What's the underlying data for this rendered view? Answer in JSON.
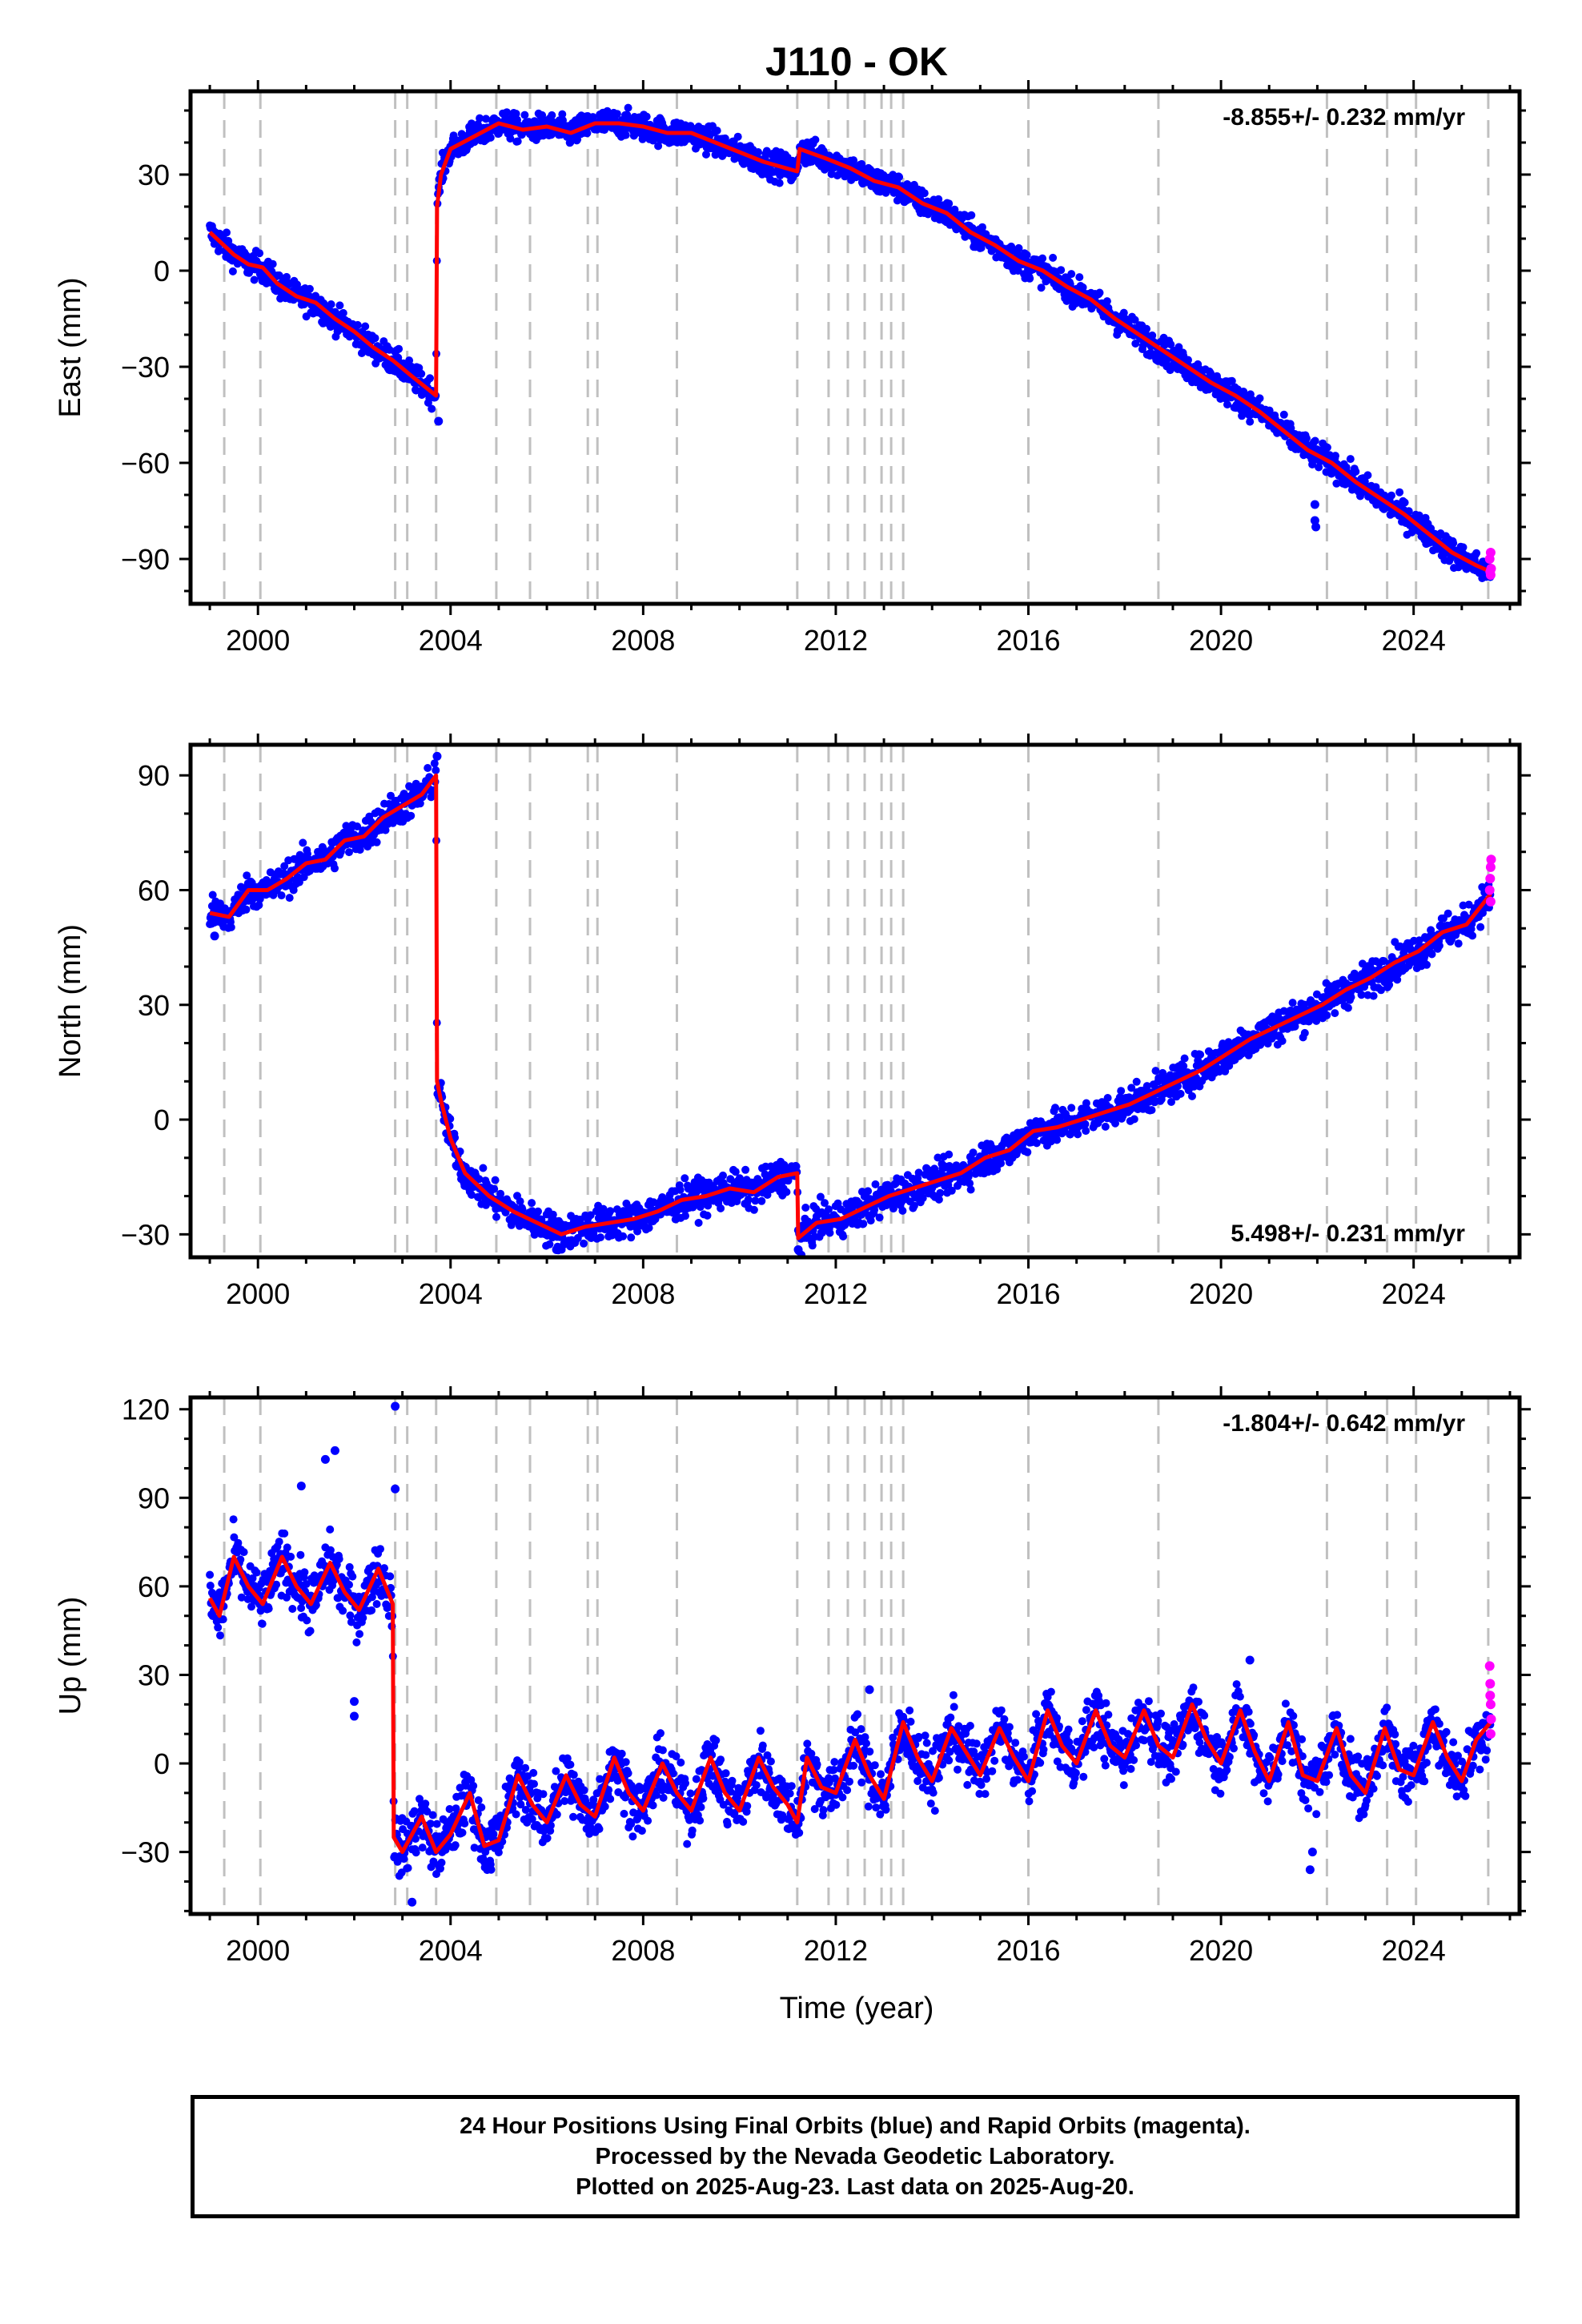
{
  "title": "J110 - OK",
  "xlabel": "Time (year)",
  "footer": {
    "line1": "24 Hour Positions Using Final Orbits (blue) and Rapid Orbits (magenta).",
    "line2": "Processed by the Nevada Geodetic Laboratory.",
    "line3": "Plotted on 2025-Aug-23. Last data on 2025-Aug-20."
  },
  "colors": {
    "final": "#0000ff",
    "rapid": "#ff00ff",
    "model": "#ff0000",
    "steps": "#c0c0c0"
  },
  "chart_data": [
    {
      "type": "scatter",
      "ylabel": "East (mm)",
      "rate_text": "-8.855+/- 0.232 mm/yr",
      "rate_position": "top-right",
      "xlim": [
        1998.6,
        2026.2
      ],
      "ylim": [
        -104,
        56
      ],
      "xticks": [
        2000,
        2004,
        2008,
        2012,
        2016,
        2020,
        2024
      ],
      "xtick_labels": [
        "2000",
        "2004",
        "2008",
        "2012",
        "2016",
        "2020",
        "2024"
      ],
      "yticks": [
        30,
        0,
        -30,
        -60,
        -90
      ],
      "ytick_labels": [
        "30",
        "0",
        "−30",
        "−60",
        "−90"
      ],
      "step_lines": [
        1999.3,
        2000.05,
        2002.85,
        2003.1,
        2003.7,
        2004.95,
        2005.65,
        2006.85,
        2007.05,
        2008.7,
        2011.2,
        2011.85,
        2012.25,
        2012.6,
        2012.95,
        2013.15,
        2013.4,
        2016.0,
        2018.7,
        2022.2,
        2023.45,
        2024.05,
        2025.55
      ],
      "model": [
        [
          1999.0,
          12
        ],
        [
          1999.5,
          5
        ],
        [
          1999.8,
          2
        ],
        [
          2000.1,
          1
        ],
        [
          2000.4,
          -4
        ],
        [
          2000.8,
          -8
        ],
        [
          2001.2,
          -10
        ],
        [
          2001.6,
          -15
        ],
        [
          2002.0,
          -19
        ],
        [
          2002.4,
          -24
        ],
        [
          2002.8,
          -28
        ],
        [
          2003.2,
          -33
        ],
        [
          2003.7,
          -39
        ],
        [
          2003.72,
          20
        ],
        [
          2003.8,
          30
        ],
        [
          2004.0,
          38
        ],
        [
          2004.5,
          42
        ],
        [
          2005.0,
          46
        ],
        [
          2005.5,
          44
        ],
        [
          2006.0,
          45
        ],
        [
          2006.5,
          43
        ],
        [
          2007.0,
          46
        ],
        [
          2007.5,
          46
        ],
        [
          2008.0,
          45
        ],
        [
          2008.5,
          43
        ],
        [
          2009.0,
          43
        ],
        [
          2009.5,
          40
        ],
        [
          2010.0,
          37
        ],
        [
          2010.5,
          34
        ],
        [
          2011.2,
          31
        ],
        [
          2011.25,
          38
        ],
        [
          2011.8,
          35
        ],
        [
          2012.3,
          32
        ],
        [
          2012.8,
          28
        ],
        [
          2013.3,
          26
        ],
        [
          2013.8,
          21
        ],
        [
          2014.3,
          18
        ],
        [
          2014.8,
          12
        ],
        [
          2015.3,
          8
        ],
        [
          2015.8,
          3
        ],
        [
          2016.3,
          0
        ],
        [
          2016.8,
          -5
        ],
        [
          2017.3,
          -9
        ],
        [
          2017.8,
          -15
        ],
        [
          2018.3,
          -20
        ],
        [
          2018.8,
          -25
        ],
        [
          2019.3,
          -30
        ],
        [
          2019.8,
          -35
        ],
        [
          2020.3,
          -39
        ],
        [
          2020.8,
          -44
        ],
        [
          2021.3,
          -50
        ],
        [
          2021.8,
          -56
        ],
        [
          2022.3,
          -60
        ],
        [
          2022.8,
          -66
        ],
        [
          2023.3,
          -71
        ],
        [
          2023.8,
          -76
        ],
        [
          2024.3,
          -82
        ],
        [
          2024.8,
          -88
        ],
        [
          2025.3,
          -92
        ],
        [
          2025.6,
          -94
        ]
      ],
      "scatter_spread": 3.0,
      "outliers": [
        [
          2003.75,
          -47
        ],
        [
          2021.95,
          -78
        ],
        [
          2021.95,
          -73
        ],
        [
          2021.97,
          -80
        ]
      ],
      "rapid": [
        [
          2025.58,
          -90
        ],
        [
          2025.59,
          -94
        ],
        [
          2025.6,
          -88
        ],
        [
          2025.6,
          -95
        ],
        [
          2025.61,
          -93
        ]
      ]
    },
    {
      "type": "scatter",
      "ylabel": "North (mm)",
      "rate_text": "5.498+/- 0.231 mm/yr",
      "rate_position": "bottom-right",
      "xlim": [
        1998.6,
        2026.2
      ],
      "ylim": [
        -36,
        98
      ],
      "xticks": [
        2000,
        2004,
        2008,
        2012,
        2016,
        2020,
        2024
      ],
      "xtick_labels": [
        "2000",
        "2004",
        "2008",
        "2012",
        "2016",
        "2020",
        "2024"
      ],
      "yticks": [
        90,
        60,
        30,
        0,
        -30
      ],
      "ytick_labels": [
        "90",
        "60",
        "30",
        "0",
        "−30"
      ],
      "step_lines": [
        1999.3,
        2000.05,
        2002.85,
        2003.1,
        2003.7,
        2004.95,
        2005.65,
        2006.85,
        2007.05,
        2008.7,
        2011.2,
        2011.85,
        2012.25,
        2012.6,
        2012.95,
        2013.15,
        2013.4,
        2016.0,
        2018.7,
        2022.2,
        2023.45,
        2024.05,
        2025.55
      ],
      "model": [
        [
          1999.0,
          54
        ],
        [
          1999.4,
          53
        ],
        [
          1999.8,
          60
        ],
        [
          2000.2,
          60
        ],
        [
          2000.6,
          63
        ],
        [
          2001.0,
          67
        ],
        [
          2001.4,
          68
        ],
        [
          2001.8,
          73
        ],
        [
          2002.2,
          74
        ],
        [
          2002.6,
          79
        ],
        [
          2003.0,
          82
        ],
        [
          2003.4,
          85
        ],
        [
          2003.7,
          90
        ],
        [
          2003.72,
          10
        ],
        [
          2003.8,
          5
        ],
        [
          2004.0,
          -5
        ],
        [
          2004.3,
          -14
        ],
        [
          2004.8,
          -20
        ],
        [
          2005.3,
          -24
        ],
        [
          2005.8,
          -27
        ],
        [
          2006.3,
          -30
        ],
        [
          2006.8,
          -28
        ],
        [
          2007.3,
          -27
        ],
        [
          2007.8,
          -26
        ],
        [
          2008.3,
          -24
        ],
        [
          2008.8,
          -21
        ],
        [
          2009.3,
          -20
        ],
        [
          2009.8,
          -18
        ],
        [
          2010.3,
          -19
        ],
        [
          2010.8,
          -15
        ],
        [
          2011.2,
          -14
        ],
        [
          2011.22,
          -31
        ],
        [
          2011.6,
          -27
        ],
        [
          2012.1,
          -26
        ],
        [
          2012.6,
          -23
        ],
        [
          2013.1,
          -20
        ],
        [
          2013.6,
          -18
        ],
        [
          2014.1,
          -16
        ],
        [
          2014.6,
          -14
        ],
        [
          2015.1,
          -10
        ],
        [
          2015.6,
          -8
        ],
        [
          2016.1,
          -3
        ],
        [
          2016.6,
          -2
        ],
        [
          2017.1,
          0
        ],
        [
          2017.6,
          2
        ],
        [
          2018.1,
          4
        ],
        [
          2018.6,
          7
        ],
        [
          2019.1,
          10
        ],
        [
          2019.6,
          13
        ],
        [
          2020.1,
          17
        ],
        [
          2020.6,
          21
        ],
        [
          2021.1,
          24
        ],
        [
          2021.6,
          27
        ],
        [
          2022.1,
          30
        ],
        [
          2022.6,
          34
        ],
        [
          2023.1,
          37
        ],
        [
          2023.6,
          41
        ],
        [
          2024.1,
          44
        ],
        [
          2024.6,
          49
        ],
        [
          2025.1,
          51
        ],
        [
          2025.6,
          59
        ]
      ],
      "scatter_spread": 3.2,
      "outliers": [
        [
          1999.1,
          48
        ],
        [
          2003.72,
          95
        ],
        [
          2006.2,
          -34
        ],
        [
          2011.22,
          -34
        ]
      ],
      "rapid": [
        [
          2025.58,
          60
        ],
        [
          2025.59,
          63
        ],
        [
          2025.6,
          66
        ],
        [
          2025.61,
          68
        ],
        [
          2025.6,
          57
        ]
      ]
    },
    {
      "type": "scatter",
      "ylabel": "Up (mm)",
      "rate_text": "-1.804+/- 0.642 mm/yr",
      "rate_position": "top-right",
      "xlim": [
        1998.6,
        2026.2
      ],
      "ylim": [
        -51,
        124
      ],
      "xticks": [
        2000,
        2004,
        2008,
        2012,
        2016,
        2020,
        2024
      ],
      "xtick_labels": [
        "2000",
        "2004",
        "2008",
        "2012",
        "2016",
        "2020",
        "2024"
      ],
      "yticks": [
        120,
        90,
        60,
        30,
        0,
        -30
      ],
      "ytick_labels": [
        "120",
        "90",
        "60",
        "30",
        "0",
        "−30"
      ],
      "step_lines": [
        1999.3,
        2000.05,
        2002.85,
        2003.1,
        2003.7,
        2004.95,
        2005.65,
        2006.85,
        2007.05,
        2008.7,
        2011.2,
        2011.85,
        2012.25,
        2012.6,
        2012.95,
        2013.15,
        2013.4,
        2016.0,
        2018.7,
        2022.2,
        2023.45,
        2024.05,
        2025.55
      ],
      "model": [
        [
          1999.0,
          56
        ],
        [
          1999.2,
          50
        ],
        [
          1999.5,
          70
        ],
        [
          1999.8,
          60
        ],
        [
          2000.1,
          54
        ],
        [
          2000.5,
          70
        ],
        [
          2000.8,
          60
        ],
        [
          2001.1,
          54
        ],
        [
          2001.5,
          68
        ],
        [
          2001.8,
          58
        ],
        [
          2002.1,
          52
        ],
        [
          2002.5,
          66
        ],
        [
          2002.8,
          54
        ],
        [
          2002.82,
          -25
        ],
        [
          2003.0,
          -30
        ],
        [
          2003.4,
          -18
        ],
        [
          2003.7,
          -30
        ],
        [
          2004.0,
          -24
        ],
        [
          2004.4,
          -10
        ],
        [
          2004.7,
          -28
        ],
        [
          2005.0,
          -26
        ],
        [
          2005.4,
          -4
        ],
        [
          2005.7,
          -14
        ],
        [
          2006.0,
          -20
        ],
        [
          2006.4,
          -4
        ],
        [
          2006.7,
          -14
        ],
        [
          2007.0,
          -18
        ],
        [
          2007.4,
          2
        ],
        [
          2007.7,
          -10
        ],
        [
          2008.0,
          -16
        ],
        [
          2008.4,
          0
        ],
        [
          2008.7,
          -10
        ],
        [
          2009.0,
          -16
        ],
        [
          2009.4,
          2
        ],
        [
          2009.7,
          -10
        ],
        [
          2010.0,
          -16
        ],
        [
          2010.4,
          2
        ],
        [
          2010.7,
          -8
        ],
        [
          2011.0,
          -14
        ],
        [
          2011.2,
          -20
        ],
        [
          2011.4,
          2
        ],
        [
          2011.7,
          -8
        ],
        [
          2012.0,
          -10
        ],
        [
          2012.4,
          8
        ],
        [
          2012.7,
          -4
        ],
        [
          2013.0,
          -12
        ],
        [
          2013.4,
          14
        ],
        [
          2013.7,
          2
        ],
        [
          2014.0,
          -6
        ],
        [
          2014.4,
          12
        ],
        [
          2014.7,
          4
        ],
        [
          2015.0,
          -4
        ],
        [
          2015.4,
          12
        ],
        [
          2015.7,
          2
        ],
        [
          2016.0,
          -6
        ],
        [
          2016.4,
          18
        ],
        [
          2016.7,
          6
        ],
        [
          2017.0,
          0
        ],
        [
          2017.4,
          18
        ],
        [
          2017.7,
          6
        ],
        [
          2018.0,
          2
        ],
        [
          2018.4,
          18
        ],
        [
          2018.7,
          6
        ],
        [
          2019.0,
          2
        ],
        [
          2019.4,
          20
        ],
        [
          2019.7,
          8
        ],
        [
          2020.0,
          0
        ],
        [
          2020.4,
          18
        ],
        [
          2020.7,
          4
        ],
        [
          2021.0,
          -6
        ],
        [
          2021.4,
          14
        ],
        [
          2021.7,
          -4
        ],
        [
          2022.0,
          -6
        ],
        [
          2022.4,
          12
        ],
        [
          2022.7,
          -4
        ],
        [
          2023.0,
          -10
        ],
        [
          2023.4,
          12
        ],
        [
          2023.7,
          -2
        ],
        [
          2024.0,
          -4
        ],
        [
          2024.4,
          14
        ],
        [
          2024.7,
          2
        ],
        [
          2025.0,
          -6
        ],
        [
          2025.3,
          8
        ],
        [
          2025.6,
          14
        ]
      ],
      "scatter_spread": 7.0,
      "outliers": [
        [
          2002.85,
          121
        ],
        [
          2002.85,
          93
        ],
        [
          2001.6,
          106
        ],
        [
          2001.4,
          103
        ],
        [
          2000.9,
          94
        ],
        [
          2002.0,
          21
        ],
        [
          2002.0,
          16
        ],
        [
          2003.2,
          -47
        ],
        [
          2021.85,
          -36
        ],
        [
          2021.9,
          -30
        ],
        [
          2012.7,
          25
        ],
        [
          2020.6,
          35
        ]
      ],
      "rapid": [
        [
          2025.58,
          33
        ],
        [
          2025.59,
          27
        ],
        [
          2025.6,
          20
        ],
        [
          2025.61,
          15
        ],
        [
          2025.6,
          10
        ],
        [
          2025.59,
          23
        ]
      ]
    }
  ]
}
